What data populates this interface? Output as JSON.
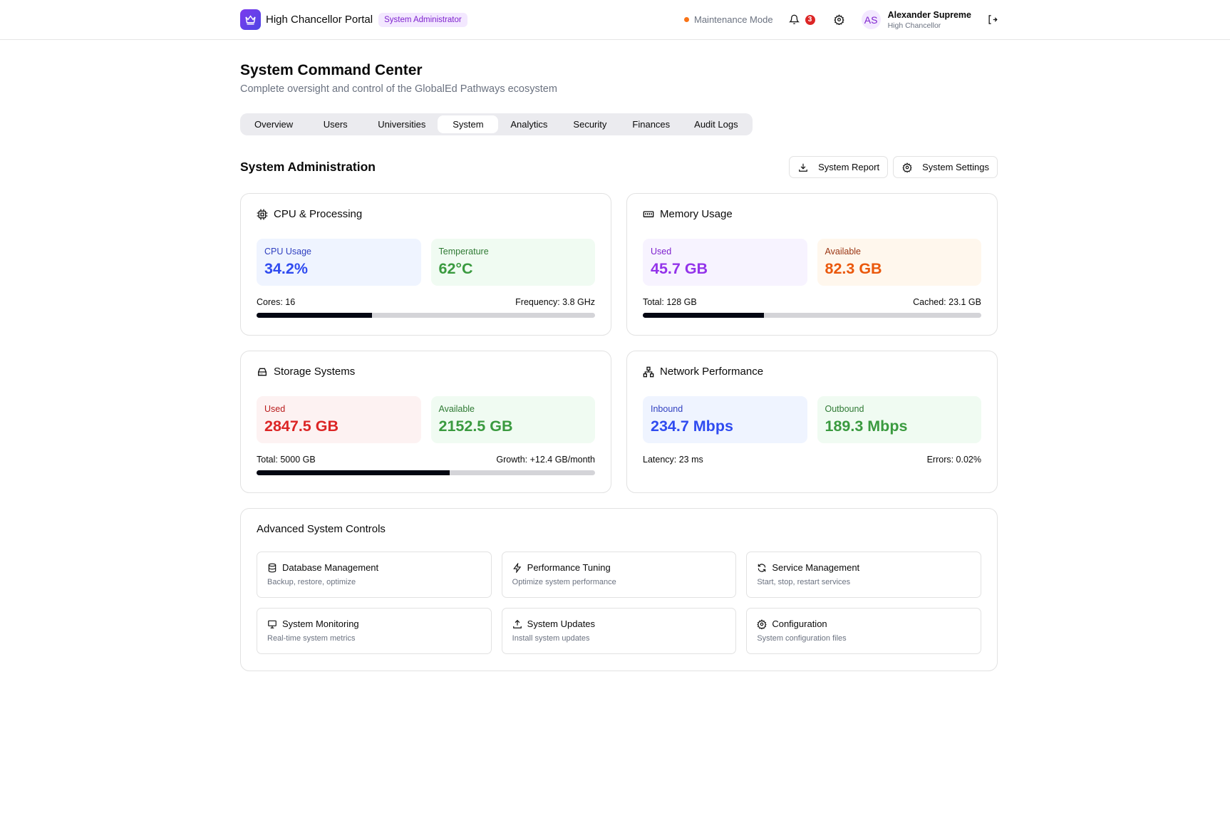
{
  "header": {
    "app_title": "High Chancellor Portal",
    "role_badge": "System Administrator",
    "maintenance": "Maintenance Mode",
    "notification_count": "3",
    "user": {
      "initials": "AS",
      "name": "Alexander Supreme",
      "role": "High Chancellor"
    }
  },
  "page": {
    "title": "System Command Center",
    "subtitle": "Complete oversight and control of the GlobalEd Pathways ecosystem"
  },
  "tabs": [
    {
      "label": "Overview"
    },
    {
      "label": "Users"
    },
    {
      "label": "Universities"
    },
    {
      "label": "System",
      "active": true
    },
    {
      "label": "Analytics"
    },
    {
      "label": "Security"
    },
    {
      "label": "Finances"
    },
    {
      "label": "Audit Logs"
    }
  ],
  "section": {
    "title": "System Administration",
    "report_label": "System Report",
    "settings_label": "System Settings"
  },
  "cards": {
    "cpu": {
      "title": "CPU & Processing",
      "a_label": "CPU Usage",
      "a_value": "34.2%",
      "b_label": "Temperature",
      "b_value": "62°C",
      "left": "Cores: 16",
      "right": "Frequency: 3.8 GHz",
      "progress": 34.2
    },
    "memory": {
      "title": "Memory Usage",
      "a_label": "Used",
      "a_value": "45.7 GB",
      "b_label": "Available",
      "b_value": "82.3 GB",
      "left": "Total: 128 GB",
      "right": "Cached: 23.1 GB",
      "progress": 35.7
    },
    "storage": {
      "title": "Storage Systems",
      "a_label": "Used",
      "a_value": "2847.5 GB",
      "b_label": "Available",
      "b_value": "2152.5 GB",
      "left": "Total: 5000 GB",
      "right": "Growth: +12.4 GB/month",
      "progress": 56.95
    },
    "network": {
      "title": "Network Performance",
      "a_label": "Inbound",
      "a_value": "234.7 Mbps",
      "b_label": "Outbound",
      "b_value": "189.3 Mbps",
      "left": "Latency: 23 ms",
      "right": "Errors: 0.02%"
    }
  },
  "advanced": {
    "title": "Advanced System Controls",
    "items": [
      {
        "title": "Database Management",
        "desc": "Backup, restore, optimize",
        "icon": "database-icon"
      },
      {
        "title": "Performance Tuning",
        "desc": "Optimize system performance",
        "icon": "zap-icon"
      },
      {
        "title": "Service Management",
        "desc": "Start, stop, restart services",
        "icon": "refresh-icon"
      },
      {
        "title": "System Monitoring",
        "desc": "Real-time system metrics",
        "icon": "monitor-icon"
      },
      {
        "title": "System Updates",
        "desc": "Install system updates",
        "icon": "upload-icon"
      },
      {
        "title": "Configuration",
        "desc": "System configuration files",
        "icon": "gear-icon"
      }
    ]
  },
  "colors": {
    "blue": "#2f4bf0",
    "green": "#3a9a3f",
    "purple": "#9333ea",
    "orange": "#ea580c",
    "red": "#dc2626"
  }
}
